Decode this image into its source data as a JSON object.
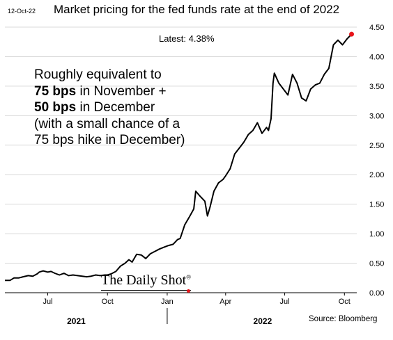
{
  "date_stamp": "12-Oct-22",
  "chart_data": {
    "type": "line",
    "title": "Market pricing for the fed funds rate at the end of 2022",
    "xlabel": "",
    "ylabel": "",
    "x_range": [
      "2021-04-26",
      "2022-10-20"
    ],
    "ylim": [
      0,
      4.5
    ],
    "y_ticks": [
      "0.00",
      "0.50",
      "1.00",
      "1.50",
      "2.00",
      "2.50",
      "3.00",
      "3.50",
      "4.00",
      "4.50"
    ],
    "x_tick_labels": [
      {
        "label": "Jul",
        "date": "2021-07-01"
      },
      {
        "label": "Oct",
        "date": "2021-10-01"
      },
      {
        "label": "Jan",
        "date": "2022-01-01"
      },
      {
        "label": "Apr",
        "date": "2022-04-01"
      },
      {
        "label": "Jul",
        "date": "2022-07-01"
      },
      {
        "label": "Oct",
        "date": "2022-10-01"
      }
    ],
    "year_labels": [
      {
        "label": "2021",
        "date": "2021-08-14"
      },
      {
        "label": "2022",
        "date": "2022-05-28"
      }
    ],
    "year_divider": "2022-01-01",
    "grid": true,
    "series": [
      {
        "color": "#000000",
        "points": [
          [
            "2021-04-26",
            0.21
          ],
          [
            "2021-05-04",
            0.21
          ],
          [
            "2021-05-10",
            0.25
          ],
          [
            "2021-05-17",
            0.25
          ],
          [
            "2021-05-24",
            0.27
          ],
          [
            "2021-06-01",
            0.29
          ],
          [
            "2021-06-08",
            0.28
          ],
          [
            "2021-06-15",
            0.32
          ],
          [
            "2021-06-18",
            0.35
          ],
          [
            "2021-06-24",
            0.37
          ],
          [
            "2021-07-01",
            0.35
          ],
          [
            "2021-07-06",
            0.36
          ],
          [
            "2021-07-12",
            0.33
          ],
          [
            "2021-07-19",
            0.3
          ],
          [
            "2021-07-26",
            0.33
          ],
          [
            "2021-08-02",
            0.29
          ],
          [
            "2021-08-09",
            0.3
          ],
          [
            "2021-08-16",
            0.29
          ],
          [
            "2021-08-23",
            0.28
          ],
          [
            "2021-08-30",
            0.27
          ],
          [
            "2021-09-06",
            0.28
          ],
          [
            "2021-09-13",
            0.3
          ],
          [
            "2021-09-20",
            0.29
          ],
          [
            "2021-09-27",
            0.3
          ],
          [
            "2021-10-01",
            0.3
          ],
          [
            "2021-10-07",
            0.32
          ],
          [
            "2021-10-14",
            0.36
          ],
          [
            "2021-10-21",
            0.45
          ],
          [
            "2021-10-28",
            0.5
          ],
          [
            "2021-11-03",
            0.56
          ],
          [
            "2021-11-08",
            0.52
          ],
          [
            "2021-11-15",
            0.65
          ],
          [
            "2021-11-22",
            0.64
          ],
          [
            "2021-11-29",
            0.58
          ],
          [
            "2021-12-06",
            0.66
          ],
          [
            "2021-12-13",
            0.7
          ],
          [
            "2021-12-20",
            0.74
          ],
          [
            "2021-12-27",
            0.77
          ],
          [
            "2022-01-03",
            0.8
          ],
          [
            "2022-01-10",
            0.82
          ],
          [
            "2022-01-17",
            0.9
          ],
          [
            "2022-01-21",
            0.92
          ],
          [
            "2022-01-28",
            1.15
          ],
          [
            "2022-02-04",
            1.28
          ],
          [
            "2022-02-11",
            1.42
          ],
          [
            "2022-02-14",
            1.72
          ],
          [
            "2022-02-21",
            1.63
          ],
          [
            "2022-02-28",
            1.55
          ],
          [
            "2022-03-04",
            1.3
          ],
          [
            "2022-03-08",
            1.45
          ],
          [
            "2022-03-14",
            1.72
          ],
          [
            "2022-03-21",
            1.86
          ],
          [
            "2022-03-28",
            1.92
          ],
          [
            "2022-04-01",
            1.98
          ],
          [
            "2022-04-08",
            2.1
          ],
          [
            "2022-04-15",
            2.35
          ],
          [
            "2022-04-22",
            2.45
          ],
          [
            "2022-04-29",
            2.55
          ],
          [
            "2022-05-06",
            2.68
          ],
          [
            "2022-05-13",
            2.75
          ],
          [
            "2022-05-20",
            2.88
          ],
          [
            "2022-05-27",
            2.7
          ],
          [
            "2022-06-03",
            2.8
          ],
          [
            "2022-06-06",
            2.75
          ],
          [
            "2022-06-10",
            2.95
          ],
          [
            "2022-06-13",
            3.55
          ],
          [
            "2022-06-15",
            3.72
          ],
          [
            "2022-06-22",
            3.55
          ],
          [
            "2022-06-29",
            3.45
          ],
          [
            "2022-07-06",
            3.35
          ],
          [
            "2022-07-13",
            3.7
          ],
          [
            "2022-07-20",
            3.55
          ],
          [
            "2022-07-27",
            3.3
          ],
          [
            "2022-08-03",
            3.25
          ],
          [
            "2022-08-10",
            3.45
          ],
          [
            "2022-08-17",
            3.52
          ],
          [
            "2022-08-24",
            3.55
          ],
          [
            "2022-08-31",
            3.7
          ],
          [
            "2022-09-07",
            3.8
          ],
          [
            "2022-09-14",
            4.2
          ],
          [
            "2022-09-21",
            4.28
          ],
          [
            "2022-09-28",
            4.2
          ],
          [
            "2022-10-05",
            4.3
          ],
          [
            "2022-10-12",
            4.38
          ]
        ]
      }
    ]
  },
  "latest": "Latest:  4.38%",
  "annotation": {
    "line1": "Roughly equivalent to",
    "line2_bold": "75 bps",
    "line2_rest": " in November +",
    "line3_bold": "50 bps",
    "line3_rest": " in December",
    "line4": "(with a small chance of a",
    "line5": "75 bps hike in December)"
  },
  "watermark": {
    "text": "The Daily Shot",
    "mark": "®"
  },
  "source": "Source: Bloomberg",
  "colors": {
    "line": "#000000",
    "end_marker": "#e8161c",
    "grid": "#d9d9d9"
  }
}
